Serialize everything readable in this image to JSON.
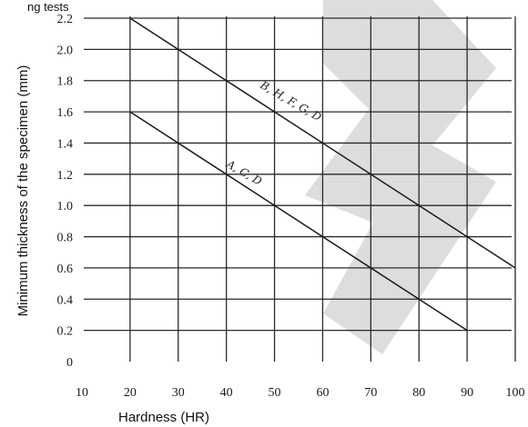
{
  "top_text": "ng tests",
  "chart_data": {
    "type": "line",
    "xlabel": "Hardness (HR)",
    "ylabel": "Minimum thickness of the specimen (mm)",
    "xlim": [
      10,
      100
    ],
    "ylim": [
      0,
      2.2
    ],
    "x_ticks": [
      "10",
      "20",
      "30",
      "40",
      "50",
      "60",
      "70",
      "80",
      "90",
      "100"
    ],
    "y_ticks": [
      "0",
      "0.2",
      "0.4",
      "0.6",
      "0.8",
      "1.0",
      "1.2",
      "1.4",
      "1.6",
      "1.8",
      "2.0",
      "2.2"
    ],
    "grid": true,
    "series": [
      {
        "name": "B, H, F, G, D",
        "x": [
          20,
          100
        ],
        "y": [
          2.2,
          0.6
        ]
      },
      {
        "name": "A, C, D",
        "x": [
          20,
          90
        ],
        "y": [
          1.6,
          0.2
        ]
      }
    ]
  },
  "watermark_color": "#d9d9d9"
}
